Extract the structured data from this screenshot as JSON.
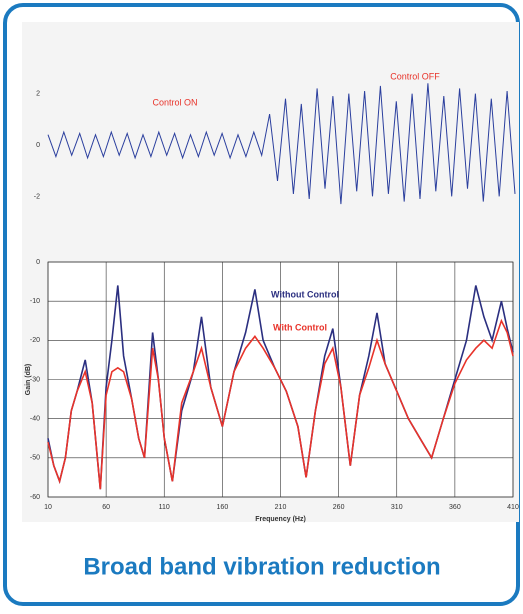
{
  "chart_data": [
    {
      "type": "line",
      "annotations": [
        "Control ON",
        "Control OFF"
      ],
      "annotation_color": "#e8332a",
      "ylim": [
        -3.5,
        3.5
      ],
      "yticks": [
        -2,
        0,
        2
      ],
      "grid": false,
      "series": [
        {
          "color": "#2b3f9e",
          "values": [
            0.4,
            -0.45,
            0.5,
            -0.4,
            0.45,
            -0.5,
            0.4,
            -0.45,
            0.5,
            -0.4,
            0.45,
            -0.5,
            0.4,
            -0.45,
            0.5,
            -0.4,
            0.45,
            -0.5,
            0.4,
            -0.45,
            0.5,
            -0.4,
            0.45,
            -0.5,
            0.4,
            -0.45,
            0.5,
            -0.4,
            1.2,
            -1.4,
            1.8,
            -1.9,
            1.6,
            -2.1,
            2.2,
            -1.7,
            1.9,
            -2.3,
            2.0,
            -1.8,
            2.1,
            -2.0,
            2.3,
            -1.9,
            1.7,
            -2.2,
            2.0,
            -2.1,
            2.4,
            -1.8,
            1.9,
            -2.0,
            2.2,
            -1.7,
            2.0,
            -2.2,
            1.8,
            -2.0,
            2.1,
            -1.9
          ]
        }
      ]
    },
    {
      "type": "line",
      "xlabel": "Frequency (Hz)",
      "ylabel": "Gain (dB)",
      "xlim": [
        10,
        410
      ],
      "xticks": [
        10,
        60,
        110,
        160,
        210,
        260,
        310,
        360,
        410
      ],
      "ylim": [
        -60,
        0
      ],
      "yticks": [
        -60,
        -50,
        -40,
        -30,
        -20,
        -10,
        0
      ],
      "grid": true,
      "x": [
        10,
        15,
        20,
        25,
        30,
        35,
        42,
        48,
        55,
        60,
        65,
        70,
        75,
        82,
        88,
        93,
        100,
        105,
        110,
        117,
        125,
        135,
        142,
        150,
        160,
        170,
        180,
        188,
        195,
        205,
        215,
        225,
        232,
        240,
        248,
        255,
        262,
        270,
        278,
        286,
        293,
        300,
        310,
        320,
        330,
        340,
        350,
        360,
        370,
        378,
        385,
        392,
        400,
        405,
        410
      ],
      "series": [
        {
          "name": "Without Control",
          "color": "#2b2f80",
          "values": [
            -45,
            -52,
            -56,
            -50,
            -38,
            -33,
            -25,
            -36,
            -58,
            -32,
            -20,
            -6,
            -24,
            -35,
            -45,
            -50,
            -18,
            -30,
            -45,
            -56,
            -38,
            -28,
            -14,
            -32,
            -42,
            -28,
            -18,
            -7,
            -20,
            -27,
            -33,
            -42,
            -55,
            -38,
            -24,
            -17,
            -32,
            -52,
            -34,
            -24,
            -13,
            -26,
            -33,
            -40,
            -45,
            -50,
            -40,
            -30,
            -20,
            -6,
            -14,
            -20,
            -10,
            -17,
            -23
          ]
        },
        {
          "name": "With Control",
          "color": "#e8332a",
          "values": [
            -46,
            -52,
            -56,
            -50,
            -38,
            -33,
            -28,
            -36,
            -58,
            -34,
            -28,
            -27,
            -28,
            -35,
            -45,
            -50,
            -22,
            -30,
            -45,
            -56,
            -36,
            -28,
            -22,
            -32,
            -42,
            -28,
            -22,
            -19,
            -22,
            -27,
            -33,
            -42,
            -55,
            -38,
            -26,
            -22,
            -32,
            -52,
            -34,
            -27,
            -20,
            -26,
            -33,
            -40,
            -45,
            -50,
            -40,
            -31,
            -25,
            -22,
            -20,
            -22,
            -15,
            -18,
            -24
          ]
        }
      ]
    }
  ],
  "caption": "Broad band vibration reduction"
}
